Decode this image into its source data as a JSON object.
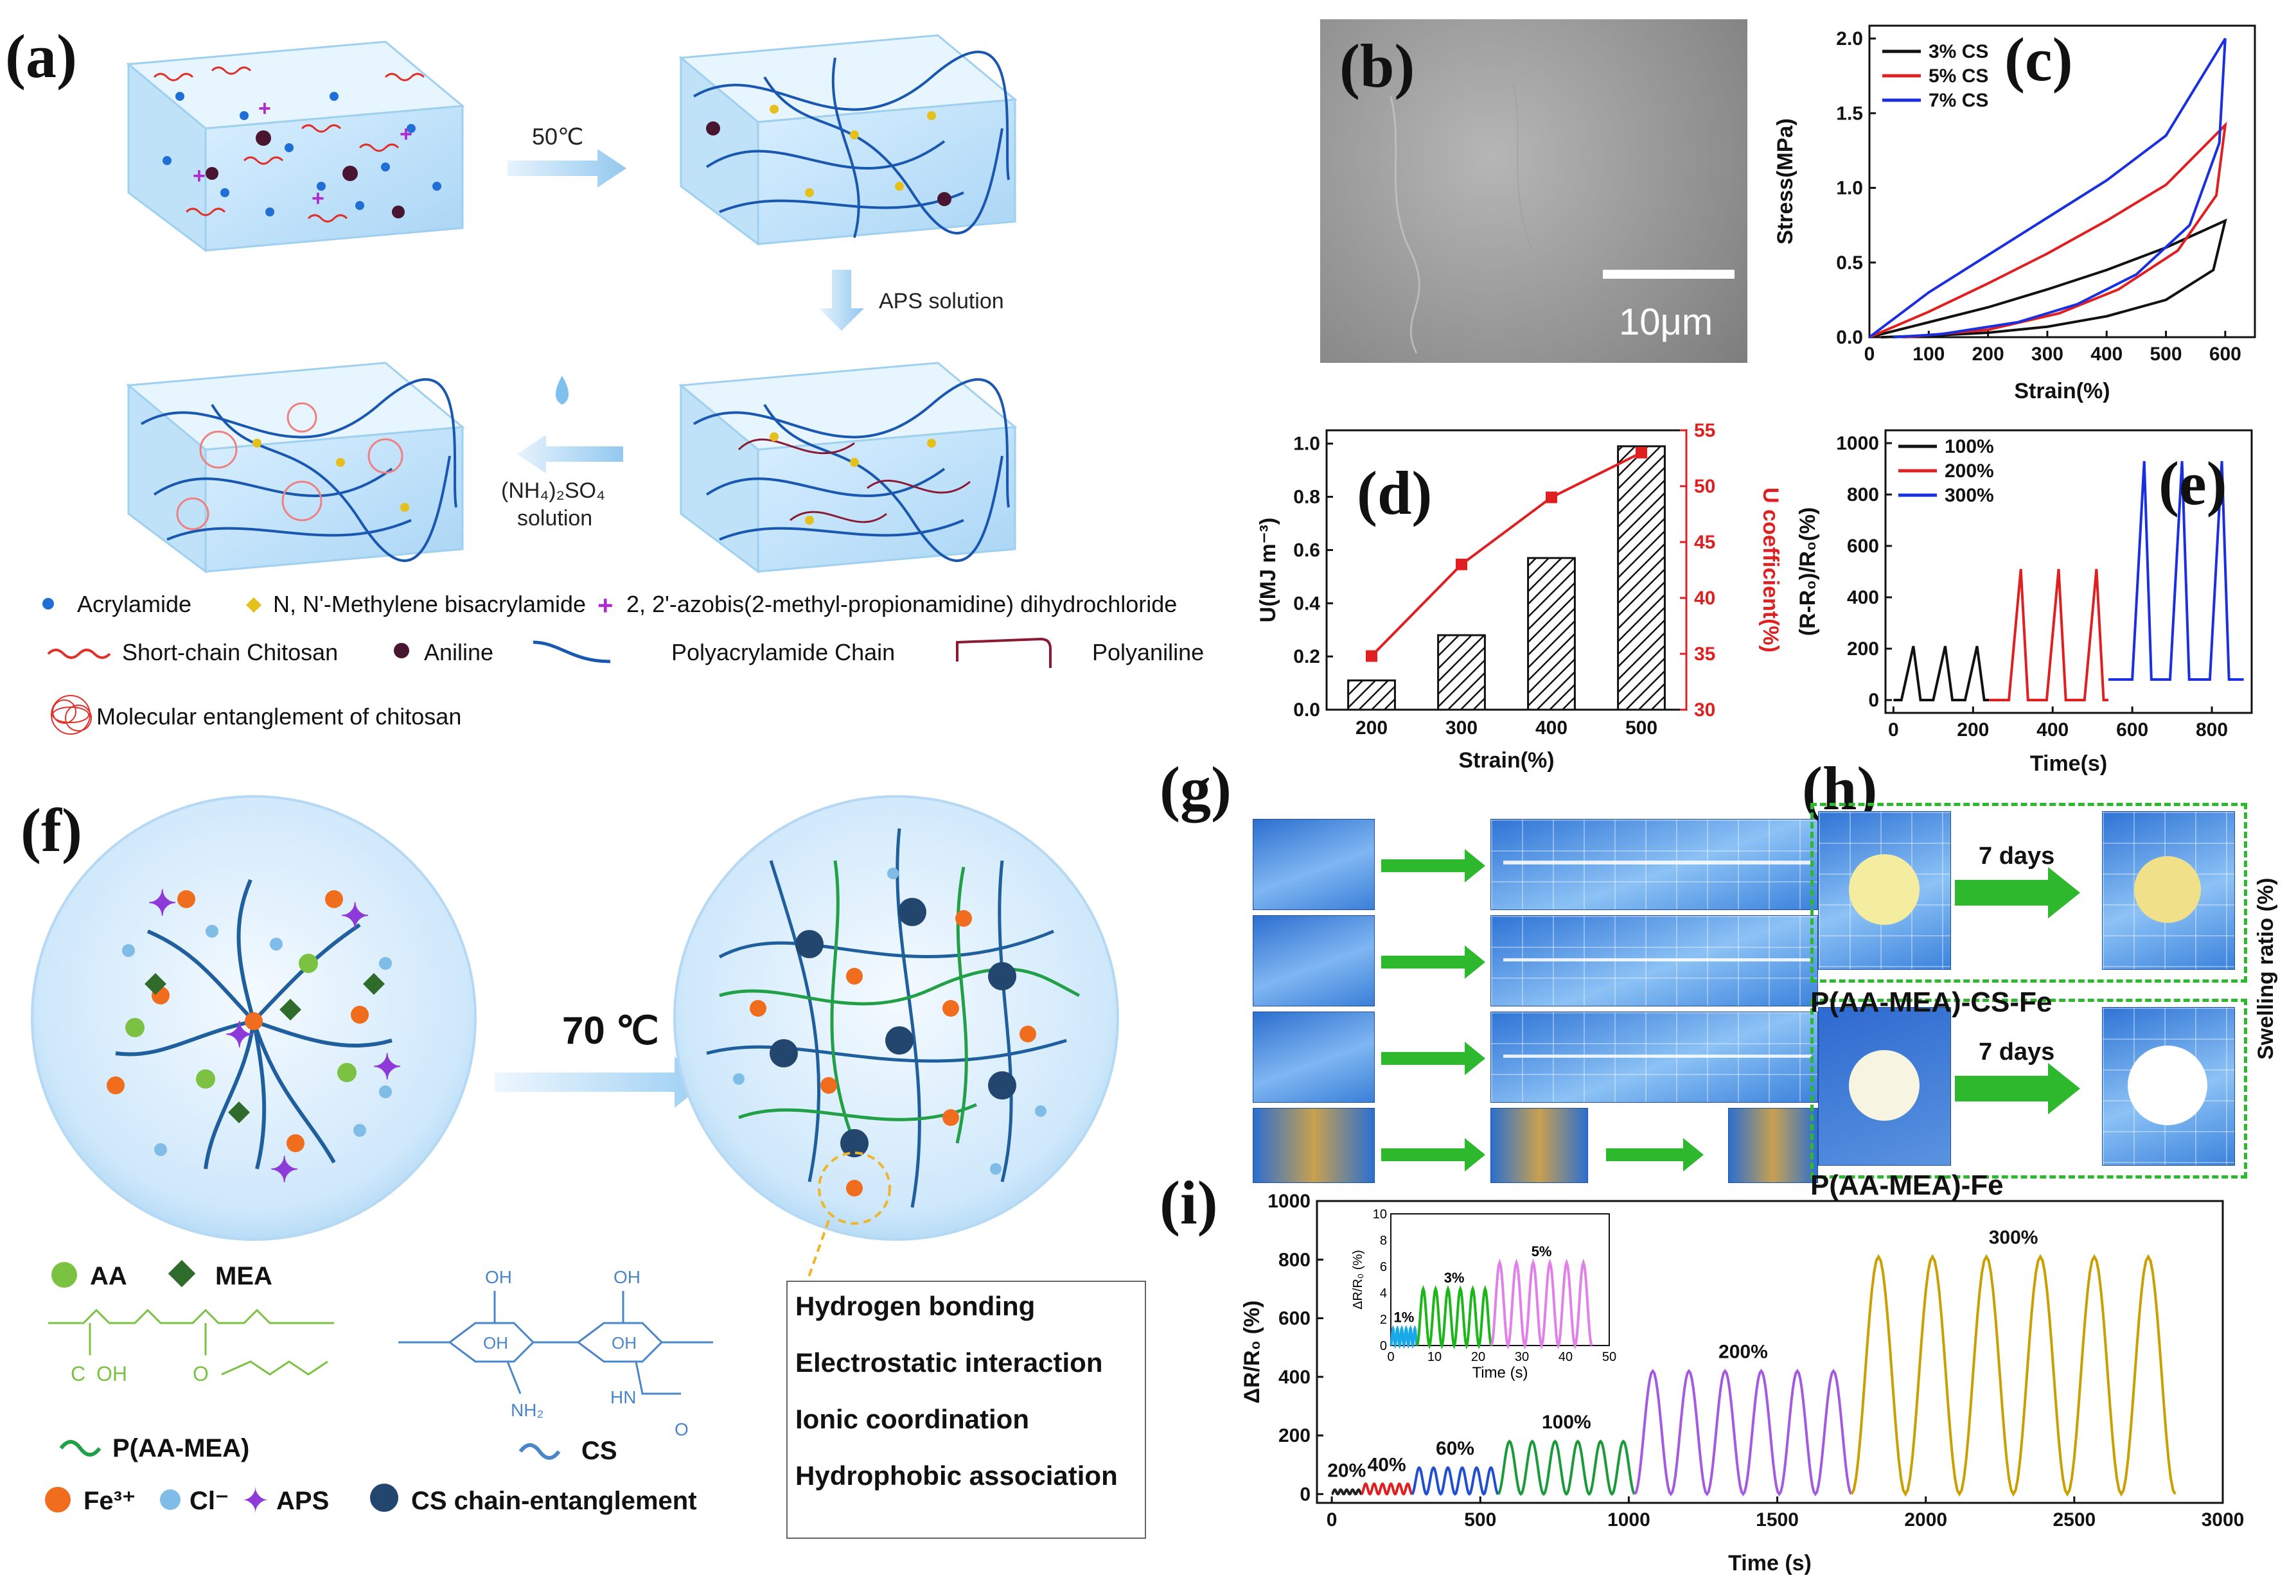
{
  "panel_labels": [
    "(a)",
    "(b)",
    "(c)",
    "(d)",
    "(e)",
    "(f)",
    "(g)",
    "(h)",
    "(i)"
  ],
  "panel_a": {
    "step1": "50℃",
    "step2": "APS solution",
    "step3_line1": "(NH₄)₂SO₄",
    "step3_line2": "solution",
    "legend": {
      "acrylamide": "Acrylamide",
      "mba": "N, N'-Methylene bisacrylamide",
      "initiator": "2, 2'-azobis(2-methyl-propionamidine) dihydrochloride",
      "chitosan": "Short-chain Chitosan",
      "aniline": "Aniline",
      "pam": "Polyacrylamide Chain",
      "pani": "Polyaniline",
      "entanglement": "Molecular entanglement of chitosan"
    },
    "colors": {
      "acrylamide": "#1f6fd6",
      "mba": "#e6c01a",
      "initiator": "#b02ad0",
      "chitosan": "#e0302a",
      "aniline": "#4a1530",
      "pam": "#1a57b0",
      "pani": "#8a1a32"
    }
  },
  "panel_b": {
    "scale_bar": "10μm"
  },
  "panel_f": {
    "temperature": "70 ℃",
    "legend": {
      "aa": "AA",
      "mea": "MEA",
      "p_aa_mea": "P(AA-MEA)",
      "cs": "CS",
      "fe": "Fe³⁺",
      "cl": "Cl⁻",
      "aps": "APS",
      "cs_entangle": "CS chain-entanglement"
    },
    "mechanisms": [
      "Hydrogen bonding",
      "Electrostatic interaction",
      "Ionic coordination",
      "Hydrophobic association"
    ],
    "structure_labels": {
      "oh1": "OH",
      "oh2": "OH",
      "oh3": "OH",
      "oh4": "OH",
      "nh2": "NH₂",
      "hn": "HN",
      "c": "C",
      "o": "O",
      "oh_acid": "OH",
      "o_ester": "O"
    }
  },
  "panel_h": {
    "arrow_label_top": "7 days",
    "arrow_label_bottom": "7 days",
    "caption_top": "P(AA-MEA)-CS-Fe",
    "caption_bottom": "P(AA-MEA)-Fe",
    "side_label": "Swelling ratio (%)"
  },
  "chart_data": [
    {
      "panel": "c",
      "type": "line",
      "xlabel": "Strain(%)",
      "ylabel": "Stress(MPa)",
      "xlim": [
        0,
        650
      ],
      "ylim": [
        0,
        2.0
      ],
      "xticks": [
        0,
        100,
        200,
        300,
        400,
        500,
        600
      ],
      "yticks": [
        0.0,
        0.5,
        1.0,
        1.5,
        2.0
      ],
      "series": [
        {
          "name": "3% CS",
          "color": "#111111",
          "loading": [
            [
              0,
              0
            ],
            [
              100,
              0.1
            ],
            [
              200,
              0.2
            ],
            [
              300,
              0.32
            ],
            [
              400,
              0.45
            ],
            [
              500,
              0.6
            ],
            [
              600,
              0.78
            ]
          ],
          "unloading": [
            [
              600,
              0.78
            ],
            [
              580,
              0.45
            ],
            [
              500,
              0.25
            ],
            [
              400,
              0.14
            ],
            [
              300,
              0.07
            ],
            [
              200,
              0.03
            ],
            [
              100,
              0.01
            ],
            [
              20,
              0
            ]
          ]
        },
        {
          "name": "5% CS",
          "color": "#e02020",
          "loading": [
            [
              0,
              0
            ],
            [
              100,
              0.17
            ],
            [
              200,
              0.36
            ],
            [
              300,
              0.56
            ],
            [
              400,
              0.78
            ],
            [
              500,
              1.02
            ],
            [
              600,
              1.42
            ]
          ],
          "unloading": [
            [
              600,
              1.42
            ],
            [
              585,
              0.95
            ],
            [
              520,
              0.58
            ],
            [
              420,
              0.32
            ],
            [
              320,
              0.16
            ],
            [
              200,
              0.05
            ],
            [
              60,
              0
            ]
          ]
        },
        {
          "name": "7% CS",
          "color": "#1a2fe0",
          "loading": [
            [
              0,
              0
            ],
            [
              100,
              0.3
            ],
            [
              200,
              0.55
            ],
            [
              300,
              0.8
            ],
            [
              400,
              1.05
            ],
            [
              500,
              1.35
            ],
            [
              600,
              2.0
            ]
          ],
          "unloading": [
            [
              600,
              2.0
            ],
            [
              590,
              1.3
            ],
            [
              540,
              0.75
            ],
            [
              450,
              0.42
            ],
            [
              350,
              0.22
            ],
            [
              250,
              0.1
            ],
            [
              120,
              0.02
            ],
            [
              40,
              0
            ]
          ]
        }
      ]
    },
    {
      "panel": "d",
      "type": "bar",
      "categories": [
        "200",
        "300",
        "400",
        "500"
      ],
      "values": [
        0.11,
        0.28,
        0.57,
        0.99
      ],
      "xlabel": "Strain(%)",
      "ylabel": "U(MJ m⁻³)",
      "ylim": [
        0,
        1.0
      ],
      "yticks": [
        0.0,
        0.2,
        0.4,
        0.6,
        0.8,
        1.0
      ],
      "secondary": {
        "ylabel": "U coefficient(%)",
        "ylim": [
          30,
          55
        ],
        "yticks": [
          30,
          35,
          40,
          45,
          50,
          55
        ],
        "values": [
          34.8,
          43.0,
          49.0,
          53.0
        ],
        "color": "#e02020"
      }
    },
    {
      "panel": "e",
      "type": "line",
      "xlabel": "Time(s)",
      "ylabel": "(R-R₀)/R₀(%)",
      "xlim": [
        -20,
        900
      ],
      "ylim": [
        -50,
        1050
      ],
      "xticks": [
        0,
        200,
        400,
        600,
        800
      ],
      "yticks": [
        0,
        200,
        400,
        600,
        800,
        1000
      ],
      "series": [
        {
          "name": "100%",
          "color": "#111111",
          "t0": 0,
          "t1": 240,
          "baseline": 0,
          "peak": 210,
          "peaks": [
            50,
            130,
            210
          ]
        },
        {
          "name": "200%",
          "color": "#e02020",
          "t0": 240,
          "t1": 540,
          "baseline": 0,
          "peak": 510,
          "peaks": [
            320,
            415,
            510
          ]
        },
        {
          "name": "300%",
          "color": "#1a2fe0",
          "t0": 540,
          "t1": 880,
          "baseline": 80,
          "peak": 930,
          "peaks": [
            630,
            725,
            825
          ]
        }
      ]
    },
    {
      "panel": "i",
      "type": "line",
      "xlabel": "Time (s)",
      "ylabel": "ΔR/R₀ (%)",
      "xlim": [
        -50,
        3000
      ],
      "ylim": [
        -30,
        1000
      ],
      "xticks": [
        0,
        500,
        1000,
        1500,
        2000,
        2500,
        3000
      ],
      "yticks": [
        0,
        200,
        400,
        600,
        800,
        1000
      ],
      "series": [
        {
          "name": "20%",
          "color": "#222222",
          "t0": 0,
          "t1": 100,
          "amp": 15,
          "cycles": 5
        },
        {
          "name": "40%",
          "color": "#e02020",
          "t0": 100,
          "t1": 270,
          "amp": 35,
          "cycles": 6
        },
        {
          "name": "60%",
          "color": "#1f4fd0",
          "t0": 270,
          "t1": 560,
          "amp": 90,
          "cycles": 6
        },
        {
          "name": "100%",
          "color": "#1a9a3a",
          "t0": 560,
          "t1": 1020,
          "amp": 180,
          "cycles": 6
        },
        {
          "name": "200%",
          "color": "#a35ae0",
          "t0": 1020,
          "t1": 1750,
          "amp": 420,
          "cycles": 6
        },
        {
          "name": "300%",
          "color": "#c9a000",
          "t0": 1750,
          "t1": 2840,
          "amp": 810,
          "cycles": 6
        }
      ],
      "inset": {
        "xlabel": "Time (s)",
        "ylabel": "ΔR/R₀ (%)",
        "xlim": [
          0,
          50
        ],
        "ylim": [
          0,
          10
        ],
        "xticks": [
          0,
          10,
          20,
          30,
          40,
          50
        ],
        "yticks": [
          0,
          2,
          4,
          6,
          8,
          10
        ],
        "series": [
          {
            "name": "1%",
            "color": "#19a9e8",
            "t0": 0,
            "t1": 6,
            "amp": 1.3,
            "cycles": 6
          },
          {
            "name": "3%",
            "color": "#1ab61a",
            "t0": 6,
            "t1": 23,
            "amp": 4.3,
            "cycles": 6
          },
          {
            "name": "5%",
            "color": "#e080e8",
            "t0": 23,
            "t1": 46,
            "amp": 6.3,
            "cycles": 6
          }
        ]
      }
    }
  ]
}
